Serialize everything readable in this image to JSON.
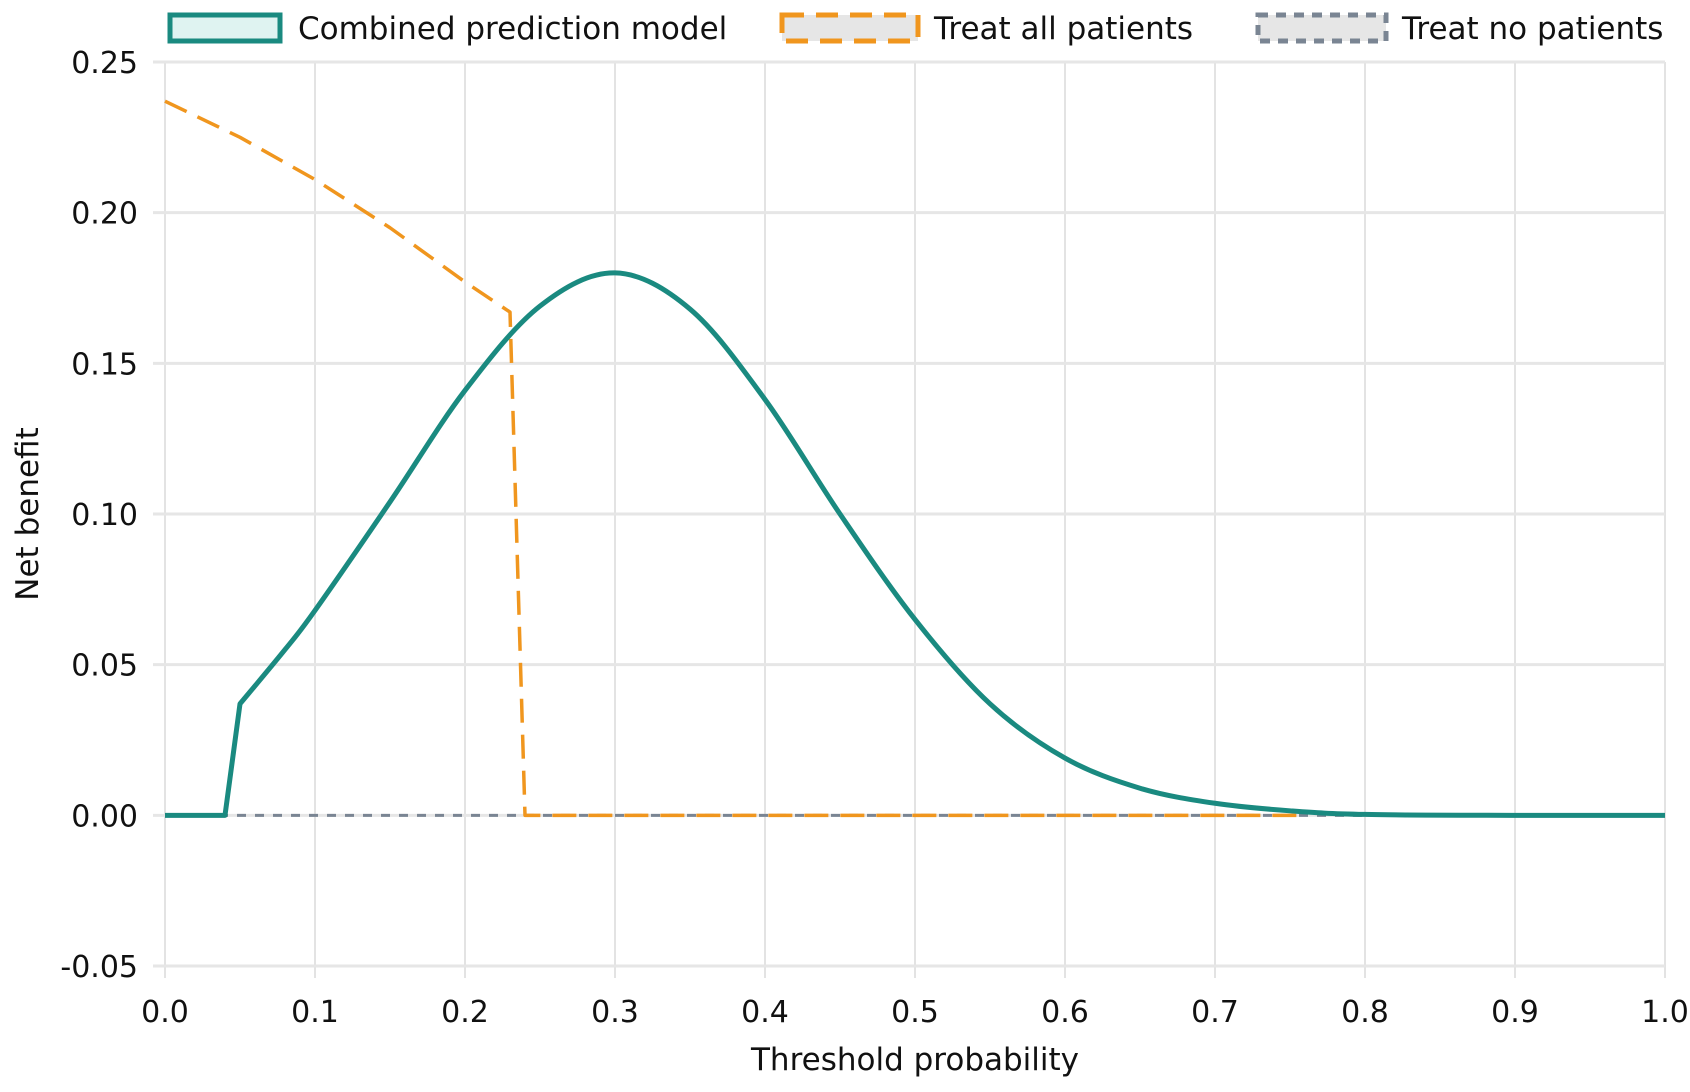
{
  "chart_data": {
    "type": "line",
    "title": "",
    "xlabel": "Threshold probability",
    "ylabel": "Net benefit",
    "xlim": [
      0,
      1
    ],
    "ylim": [
      -0.05,
      0.25
    ],
    "grid": true,
    "legend_placement": "top",
    "x_ticks": [
      "0.0",
      "0.1",
      "0.2",
      "0.3",
      "0.4",
      "0.5",
      "0.6",
      "0.7",
      "0.8",
      "0.9",
      "1.0"
    ],
    "y_ticks": [
      "0.25",
      "0.20",
      "0.15",
      "0.10",
      "0.05",
      "0.00",
      "-0.05"
    ],
    "series": [
      {
        "name": "Combined prediction model",
        "color": "#1a8a80",
        "style": "solid",
        "x": [
          0,
          0.04,
          0.05,
          0.08,
          0.1,
          0.15,
          0.2,
          0.25,
          0.3,
          0.35,
          0.4,
          0.45,
          0.5,
          0.55,
          0.6,
          0.65,
          0.7,
          0.75,
          0.8,
          0.9,
          1.0
        ],
        "y": [
          0,
          0,
          0.037,
          0.055,
          0.068,
          0.104,
          0.141,
          0.169,
          0.18,
          0.168,
          0.138,
          0.1,
          0.065,
          0.037,
          0.019,
          0.009,
          0.004,
          0.0015,
          0.0003,
          0,
          0
        ]
      },
      {
        "name": "Treat all patients",
        "color": "#f0961e",
        "style": "dashed",
        "x": [
          0,
          0.05,
          0.1,
          0.15,
          0.2,
          0.23,
          0.24,
          0.5,
          0.76
        ],
        "y": [
          0.237,
          0.225,
          0.211,
          0.195,
          0.177,
          0.167,
          0,
          0,
          0
        ]
      },
      {
        "name": "Treat no patients",
        "color": "#7a8593",
        "style": "dotted",
        "x": [
          0,
          1
        ],
        "y": [
          0,
          0
        ]
      }
    ]
  }
}
